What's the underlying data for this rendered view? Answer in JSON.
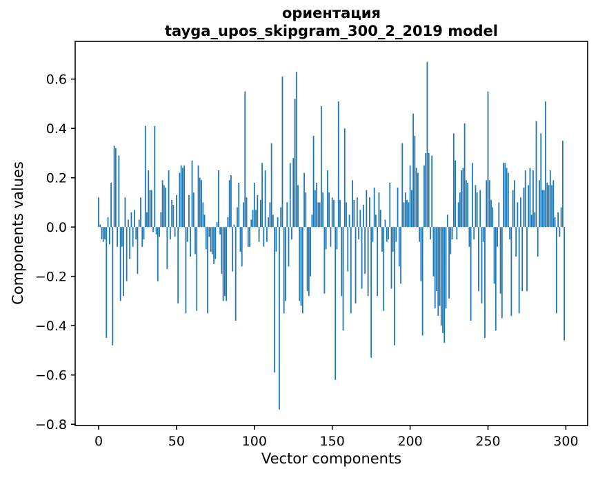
{
  "title": {
    "line1": "ориентация",
    "line2": "tayga_upos_skipgram_300_2_2019 model"
  },
  "chart_data": {
    "type": "bar",
    "title": "ориентация\ntayga_upos_skipgram_300_2_2019 model",
    "xlabel": "Vector components",
    "ylabel": "Components values",
    "bar_color": "#1f77b4",
    "grid": false,
    "legend": false,
    "xlim": [
      -16,
      315
    ],
    "ylim": [
      -0.805,
      0.753
    ],
    "xticks": [
      0,
      50,
      100,
      150,
      200,
      250,
      300
    ],
    "yticks": [
      0.6,
      0.4,
      0.2,
      0.0,
      -0.2,
      -0.4,
      -0.6,
      -0.8
    ],
    "n_components": 300,
    "values": [
      0.12,
      0.01,
      -0.05,
      -0.06,
      -0.05,
      -0.45,
      0.04,
      -0.07,
      0.18,
      -0.48,
      0.33,
      0.32,
      -0.08,
      0.29,
      -0.3,
      -0.08,
      -0.28,
      0.12,
      -0.22,
      0.03,
      -0.13,
      0.06,
      -0.08,
      0.07,
      -0.05,
      -0.19,
      0.03,
      0.12,
      -0.08,
      -0.05,
      0.41,
      0.06,
      0.23,
      0.15,
      0.15,
      -0.02,
      0.41,
      -0.03,
      -0.22,
      -0.04,
      0.06,
      0.19,
      0.17,
      0.16,
      -0.17,
      0.23,
      -0.05,
      0.11,
      0.09,
      -0.04,
      0.13,
      -0.31,
      0.22,
      0.25,
      0.24,
      0.25,
      -0.35,
      -0.06,
      0.13,
      -0.12,
      0.27,
      0.14,
      -0.11,
      -0.34,
      0.25,
      0.2,
      0.19,
      0.1,
      0.05,
      -0.09,
      -0.35,
      -0.04,
      -0.1,
      -0.11,
      -0.15,
      -0.13,
      0.02,
      0.23,
      -0.03,
      -0.19,
      -0.3,
      -0.28,
      -0.3,
      0.04,
      0.19,
      0.21,
      -0.18,
      0.01,
      -0.38,
      0.08,
      0.18,
      -0.1,
      -0.16,
      0.1,
      0.55,
      0.12,
      -0.08,
      -0.08,
      0.03,
      0.07,
      0.18,
      0.07,
      0.13,
      -0.06,
      0.11,
      0.26,
      -0.08,
      0.23,
      -0.06,
      0.04,
      0.1,
      0.34,
      0.05,
      -0.59,
      -0.1,
      0.04,
      -0.74,
      0.08,
      0.61,
      -0.35,
      -0.3,
      0.1,
      -0.16,
      0.26,
      -0.05,
      0.28,
      0.52,
      0.63,
      0.17,
      -0.3,
      -0.32,
      -0.35,
      0.22,
      0.14,
      -0.26,
      -0.28,
      -0.2,
      0.05,
      0.37,
      0.15,
      0.18,
      0.1,
      0.1,
      0.49,
      0.14,
      -0.27,
      -0.09,
      0.23,
      0.14,
      -0.08,
      0.12,
      0.11,
      -0.62,
      -0.09,
      0.51,
      0.11,
      -0.28,
      -0.42,
      0.4,
      0.1,
      -0.18,
      0.05,
      -0.35,
      0.19,
      0.11,
      -0.31,
      0.12,
      -0.05,
      0.07,
      -0.25,
      0.09,
      -0.19,
      0.15,
      -0.28,
      0.12,
      -0.53,
      -0.06,
      0.16,
      0.05,
      -0.28,
      0.14,
      0.07,
      -0.1,
      -0.34,
      0.03,
      -0.06,
      -0.05,
      0.18,
      -0.25,
      -0.1,
      -0.48,
      -0.06,
      0.16,
      -0.16,
      -0.23,
      0.34,
      0.1,
      0.14,
      0.11,
      0.1,
      0.25,
      0.15,
      0.46,
      0.37,
      0.24,
      0.22,
      -0.06,
      -0.22,
      -0.44,
      0.25,
      0.3,
      0.67,
      0.3,
      -0.05,
      0.29,
      -0.2,
      -0.33,
      -0.26,
      -0.36,
      -0.32,
      -0.4,
      -0.43,
      -0.47,
      -0.33,
      0.05,
      -0.29,
      -0.11,
      -0.05,
      0.38,
      0.27,
      -0.05,
      0.1,
      0.14,
      0.23,
      0.24,
      0.42,
      0.19,
      0.18,
      -0.08,
      -0.38,
      0.26,
      -0.05,
      0.17,
      0.14,
      -0.26,
      0.15,
      -0.31,
      -0.06,
      -0.45,
      0.19,
      0.55,
      0.19,
      0.11,
      0.08,
      -0.23,
      -0.42,
      -0.08,
      0.1,
      -0.27,
      -0.37,
      0.26,
      0.26,
      0.24,
      0.22,
      -0.05,
      -0.36,
      0.15,
      0.19,
      -0.12,
      0.1,
      -0.35,
      0.12,
      -0.26,
      0.16,
      0.23,
      -0.26,
      0.17,
      0.24,
      0.05,
      0.23,
      0.06,
      0.43,
      -0.12,
      0.19,
      0.38,
      0.15,
      0.15,
      0.51,
      0.18,
      0.17,
      0.23,
      0.17,
      0.19,
      0.04,
      -0.35,
      0.06,
      -0.04,
      0.08,
      0.35,
      -0.46
    ]
  }
}
